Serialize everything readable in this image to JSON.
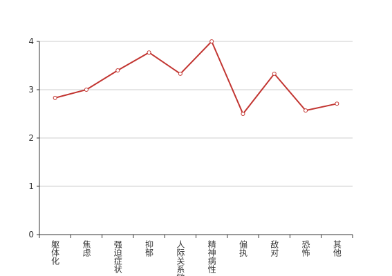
{
  "chart_data": {
    "type": "line",
    "categories": [
      "躯体化",
      "焦虑",
      "强迫症状",
      "抑郁",
      "人际关系敏感",
      "精神病性",
      "偏执",
      "敌对",
      "恐怖",
      "其他"
    ],
    "series": [
      {
        "color": "#c23531",
        "values": [
          2.83,
          3.0,
          3.4,
          3.77,
          3.33,
          4.0,
          2.5,
          3.33,
          2.57,
          2.71
        ]
      }
    ],
    "ylim": [
      0,
      4
    ],
    "yticks": [
      0,
      1,
      2,
      3,
      4
    ],
    "grid": true
  }
}
